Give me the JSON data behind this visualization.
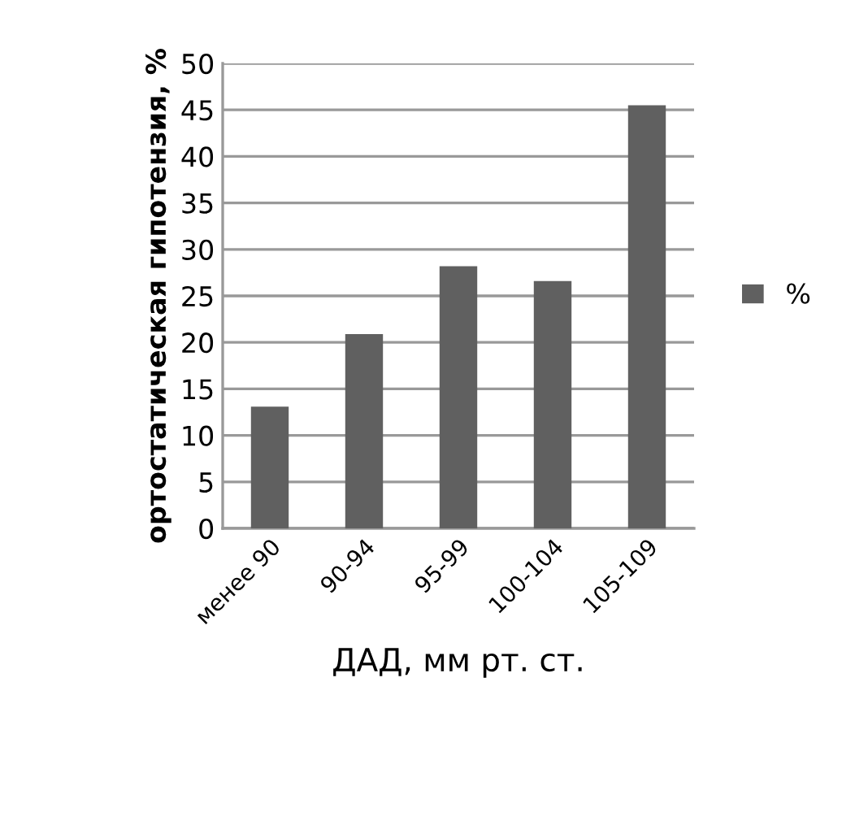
{
  "chart_data": {
    "type": "bar",
    "xlabel": "ДАД, мм рт. ст.",
    "ylabel": "ортостатическая гипотензия, %",
    "categories": [
      "менее 90",
      "90-94",
      "95-99",
      "100-104",
      "105-109"
    ],
    "series": [
      {
        "name": "%",
        "color": "#606060",
        "values": [
          13.1,
          20.9,
          28.2,
          26.6,
          45.5
        ]
      }
    ],
    "ylim": [
      0,
      50
    ],
    "yticks": [
      0,
      5,
      10,
      15,
      20,
      25,
      30,
      35,
      40,
      45,
      50
    ],
    "grid": "y",
    "legend": "right"
  }
}
